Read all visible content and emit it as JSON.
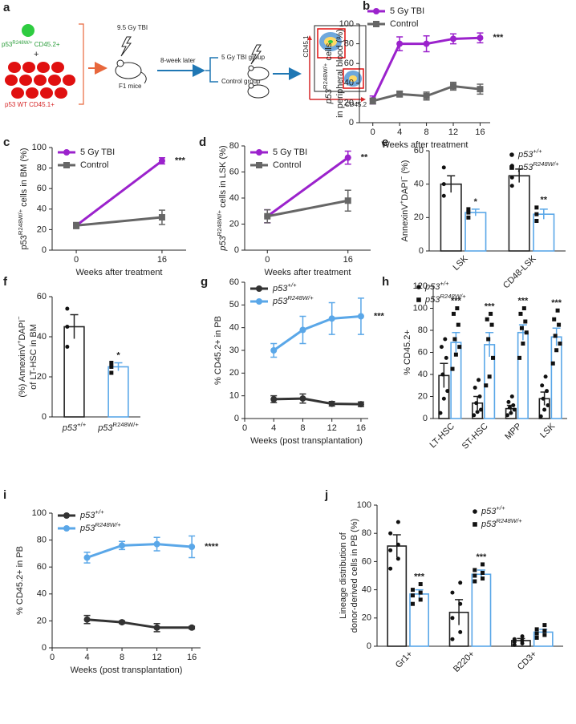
{
  "diagram": {
    "panel": "a",
    "cell_label_top": [
      {
        "text": "p53"
      },
      {
        "text": "R248W/+",
        "sup": true
      },
      {
        "text": " CD45.2+"
      }
    ],
    "plus": "+",
    "cell_label_bottom": "p53 WT CD45.1+",
    "dose": "9.5 Gy TBI",
    "mice": "F1 mice",
    "interval": "8-week later",
    "group_1": "5 Gy TBI group",
    "group_2": "Control group",
    "flow_y": "CD45.1",
    "flow_x": "CD45.2"
  },
  "chart_data": [
    {
      "type": "line",
      "panel": "b",
      "ylabel": [
        [
          {
            "text": "p53",
            "italic": true
          },
          {
            "text": "R248W/+",
            "sup": true
          },
          {
            "text": " cells"
          }
        ],
        [
          {
            "text": "in peripheral blood (%)"
          }
        ]
      ],
      "xlabel": "Weeks after treatment",
      "x": [
        0,
        4,
        8,
        12,
        16
      ],
      "xlim": [
        -2,
        17.5
      ],
      "xticks": [
        0,
        4,
        8,
        12,
        16
      ],
      "ylim": [
        0,
        100
      ],
      "yticks": [
        0,
        20,
        40,
        60,
        80,
        100
      ],
      "grid": false,
      "legend": "upper left",
      "significance": "***",
      "series": [
        {
          "name": "5 Gy TBI",
          "color": "#9b22cc",
          "marker": "circle",
          "values": [
            23,
            80,
            80,
            85,
            86
          ],
          "errors": [
            4,
            7,
            8,
            5,
            5
          ]
        },
        {
          "name": "Control",
          "color": "#666666",
          "marker": "square",
          "values": [
            22,
            29,
            27,
            37,
            34
          ],
          "errors": [
            3,
            3,
            4,
            4,
            5
          ]
        }
      ]
    },
    {
      "type": "line",
      "panel": "c",
      "ylabel": [
        [
          {
            "text": "p53"
          },
          {
            "text": "R248W/+",
            "sup": true
          },
          {
            "text": " cells in BM (%)"
          }
        ]
      ],
      "xlabel": "Weeks after treatment",
      "x": [
        0,
        16
      ],
      "xlim": [
        -4.5,
        20.5
      ],
      "xticks": [
        0,
        16
      ],
      "ylim": [
        0,
        100
      ],
      "yticks": [
        0,
        20,
        40,
        60,
        80,
        100
      ],
      "grid": false,
      "legend": "upper left",
      "significance": "***",
      "series": [
        {
          "name": "5 Gy TBI",
          "color": "#9b22cc",
          "marker": "circle",
          "values": [
            24,
            87
          ],
          "errors": [
            2,
            3
          ]
        },
        {
          "name": "Control",
          "color": "#666666",
          "marker": "square",
          "values": [
            24,
            32
          ],
          "errors": [
            3,
            7
          ]
        }
      ]
    },
    {
      "type": "line",
      "panel": "d",
      "ylabel": [
        [
          {
            "text": "p53",
            "italic": true
          },
          {
            "text": "R248W/+",
            "sup": true
          },
          {
            "text": " cells in LSK (%)"
          }
        ]
      ],
      "xlabel": "Weeks after treatment",
      "x": [
        0,
        16
      ],
      "xlim": [
        -4.5,
        20.5
      ],
      "xticks": [
        0,
        16
      ],
      "ylim": [
        0,
        80
      ],
      "yticks": [
        0,
        20,
        40,
        60,
        80
      ],
      "grid": false,
      "legend": "upper left",
      "significance": "**",
      "series": [
        {
          "name": "5 Gy TBI",
          "color": "#9b22cc",
          "marker": "circle",
          "values": [
            26,
            71
          ],
          "errors": [
            5,
            5
          ]
        },
        {
          "name": "Control",
          "color": "#666666",
          "marker": "square",
          "values": [
            26,
            38
          ],
          "errors": [
            5,
            8
          ]
        }
      ]
    },
    {
      "type": "bar",
      "panel": "e",
      "ylabel": [
        [
          {
            "text": "AnnexinV"
          },
          {
            "text": "+",
            "sup": true
          },
          {
            "text": "DAPI"
          },
          {
            "text": "−",
            "sup": true
          },
          {
            "text": " (%)"
          }
        ]
      ],
      "categories": [
        "LSK",
        "CD48-LSK"
      ],
      "rotate_labels": true,
      "ylim": [
        0,
        60
      ],
      "yticks": [
        0,
        20,
        40,
        60
      ],
      "grid": false,
      "legend": "upper right",
      "significance": [
        "*",
        "**"
      ],
      "series": [
        {
          "name": [
            {
              "text": "p53",
              "italic": true
            },
            {
              "text": "+/+",
              "sup": true,
              "italic": true
            }
          ],
          "color": "#222222",
          "marker": "circle",
          "values": [
            40,
            45
          ],
          "errors": [
            5,
            4
          ],
          "points": [
            [
              33,
              40,
              50
            ],
            [
              39,
              44,
              51
            ]
          ]
        },
        {
          "name": [
            {
              "text": "p53",
              "italic": true
            },
            {
              "text": "R248W/+",
              "sup": true,
              "italic": true
            }
          ],
          "color": "#5aa7e8",
          "marker": "square",
          "values": [
            23,
            22
          ],
          "errors": [
            2,
            3
          ],
          "points": [
            [
              20,
              23,
              25
            ],
            [
              18,
              22,
              26
            ]
          ]
        }
      ]
    },
    {
      "type": "bar",
      "panel": "f",
      "ylabel": [
        [
          {
            "text": "(%) AnnexinV"
          },
          {
            "text": "+",
            "sup": true
          },
          {
            "text": "DAPI"
          },
          {
            "text": "−",
            "sup": true
          }
        ],
        [
          {
            "text": "of LT-HSC in BM"
          }
        ]
      ],
      "categories": [
        [
          {
            "text": "p53",
            "italic": true
          },
          {
            "text": "+/+",
            "sup": true
          }
        ],
        [
          {
            "text": "p53",
            "italic": true
          },
          {
            "text": "R248W/+",
            "sup": true
          }
        ]
      ],
      "rotate_labels": false,
      "ylim": [
        0,
        60
      ],
      "yticks": [
        0,
        20,
        40,
        60
      ],
      "grid": false,
      "significance": [
        null,
        "*"
      ],
      "values": [
        45,
        25
      ],
      "errors": [
        6,
        2
      ],
      "colors": [
        "#222222",
        "#5aa7e8"
      ],
      "markers": [
        "circle",
        "square"
      ],
      "points": [
        [
          35,
          45,
          54
        ],
        [
          22,
          25,
          27
        ]
      ]
    },
    {
      "type": "line",
      "panel": "g",
      "ylabel": [
        [
          {
            "text": "% CD45.2+ in PB"
          }
        ]
      ],
      "xlabel": "Weeks (post transplantation)",
      "x": [
        4,
        8,
        12,
        16
      ],
      "xlim": [
        0,
        17
      ],
      "xticks": [
        0,
        4,
        8,
        12,
        16
      ],
      "ylim": [
        0,
        60
      ],
      "yticks": [
        0,
        10,
        20,
        30,
        40,
        50,
        60
      ],
      "grid": false,
      "legend": "upper left",
      "significance": "***",
      "series": [
        {
          "name": [
            {
              "text": "p53",
              "italic": true
            },
            {
              "text": "+/+",
              "sup": true,
              "italic": true
            }
          ],
          "color": "#333333",
          "marker": "circle",
          "values": [
            8.5,
            8.8,
            6.5,
            6.3
          ],
          "errors": [
            1.5,
            2,
            1,
            1
          ]
        },
        {
          "name": [
            {
              "text": "p53",
              "italic": true
            },
            {
              "text": "R248W/+",
              "sup": true,
              "italic": true
            }
          ],
          "color": "#5aa7e8",
          "marker": "circle",
          "values": [
            30,
            39,
            44,
            45
          ],
          "errors": [
            3,
            6,
            7,
            8
          ]
        }
      ]
    },
    {
      "type": "bar",
      "panel": "h",
      "ylabel": [
        [
          {
            "text": "% CD45.2+"
          }
        ]
      ],
      "categories": [
        "LT-HSC",
        "ST-HSC",
        "MPP",
        "LSK"
      ],
      "rotate_labels": true,
      "ylim": [
        0,
        120
      ],
      "yticks": [
        0,
        20,
        40,
        60,
        80,
        100,
        120
      ],
      "grid": false,
      "legend": "upper left",
      "significance": [
        "***",
        "***",
        "***",
        "***"
      ],
      "series": [
        {
          "name": [
            {
              "text": "p53",
              "italic": true
            },
            {
              "text": "+/+",
              "sup": true,
              "italic": true
            }
          ],
          "color": "#222222",
          "marker": "circle",
          "values": [
            39,
            14,
            9,
            18
          ],
          "errors": [
            11,
            6,
            3,
            6
          ],
          "points": [
            [
              5,
              18,
              25,
              40,
              55,
              65,
              72
            ],
            [
              3,
              6,
              8,
              14,
              20,
              28,
              35
            ],
            [
              3,
              5,
              8,
              10,
              12,
              15,
              20
            ],
            [
              2,
              8,
              12,
              18,
              25,
              30,
              38
            ]
          ]
        },
        {
          "name": [
            {
              "text": "p53",
              "italic": true
            },
            {
              "text": "R248W/+",
              "sup": true,
              "italic": true
            }
          ],
          "color": "#5aa7e8",
          "marker": "square",
          "values": [
            69,
            67,
            78,
            74
          ],
          "errors": [
            9,
            11,
            7,
            8
          ],
          "points": [
            [
              45,
              58,
              65,
              72,
              85,
              95,
              100
            ],
            [
              30,
              38,
              55,
              72,
              85,
              90,
              95
            ],
            [
              55,
              68,
              78,
              82,
              88,
              95,
              100
            ],
            [
              50,
              62,
              68,
              75,
              85,
              90,
              98
            ]
          ]
        }
      ]
    },
    {
      "type": "line",
      "panel": "i",
      "ylabel": [
        [
          {
            "text": "% CD45.2+ in PB"
          }
        ]
      ],
      "xlabel": "Weeks (post transplantation)",
      "x": [
        4,
        8,
        12,
        16
      ],
      "xlim": [
        0,
        17
      ],
      "xticks": [
        0,
        4,
        8,
        12,
        16
      ],
      "ylim": [
        0,
        100
      ],
      "yticks": [
        0,
        20,
        40,
        60,
        80,
        100
      ],
      "grid": false,
      "legend": "upper left",
      "significance": "****",
      "series": [
        {
          "name": [
            {
              "text": "p53",
              "italic": true
            },
            {
              "text": "+/+",
              "sup": true,
              "italic": true
            }
          ],
          "color": "#333333",
          "marker": "circle",
          "values": [
            21,
            19,
            15,
            15
          ],
          "errors": [
            3,
            1,
            3,
            1
          ]
        },
        {
          "name": [
            {
              "text": "p53",
              "italic": true
            },
            {
              "text": "R248W/+",
              "sup": true,
              "italic": true
            }
          ],
          "color": "#5aa7e8",
          "marker": "circle",
          "values": [
            67,
            76,
            77,
            75
          ],
          "errors": [
            4,
            3,
            5,
            8
          ]
        }
      ]
    },
    {
      "type": "bar",
      "panel": "j",
      "ylabel": [
        [
          {
            "text": "Lineage distribution of"
          }
        ],
        [
          {
            "text": "donor-derived cells in PB (%)"
          }
        ]
      ],
      "categories": [
        "Gr1+",
        "B220+",
        "CD3+"
      ],
      "rotate_labels": true,
      "ylim": [
        0,
        100
      ],
      "yticks": [
        0,
        20,
        40,
        60,
        80,
        100
      ],
      "grid": false,
      "legend": "upper right",
      "significance": [
        "***",
        "***",
        null
      ],
      "series": [
        {
          "name": [
            {
              "text": "p53",
              "italic": true
            },
            {
              "text": "+/+",
              "sup": true,
              "italic": true
            }
          ],
          "color": "#222222",
          "marker": "circle",
          "values": [
            71,
            24,
            4
          ],
          "errors": [
            8,
            9,
            1.5
          ],
          "points": [
            [
              55,
              62,
              68,
              72,
              80,
              88
            ],
            [
              5,
              10,
              20,
              30,
              38,
              45
            ],
            [
              1,
              2,
              3,
              4,
              5,
              7
            ]
          ]
        },
        {
          "name": [
            {
              "text": "p53",
              "italic": true
            },
            {
              "text": "R248W/+",
              "sup": true,
              "italic": true
            }
          ],
          "color": "#5aa7e8",
          "marker": "square",
          "values": [
            37,
            51,
            10
          ],
          "errors": [
            3,
            3,
            2
          ],
          "points": [
            [
              30,
              33,
              36,
              38,
              40,
              44
            ],
            [
              46,
              48,
              50,
              52,
              54,
              58
            ],
            [
              6,
              8,
              9,
              11,
              12,
              15
            ]
          ]
        }
      ]
    }
  ]
}
